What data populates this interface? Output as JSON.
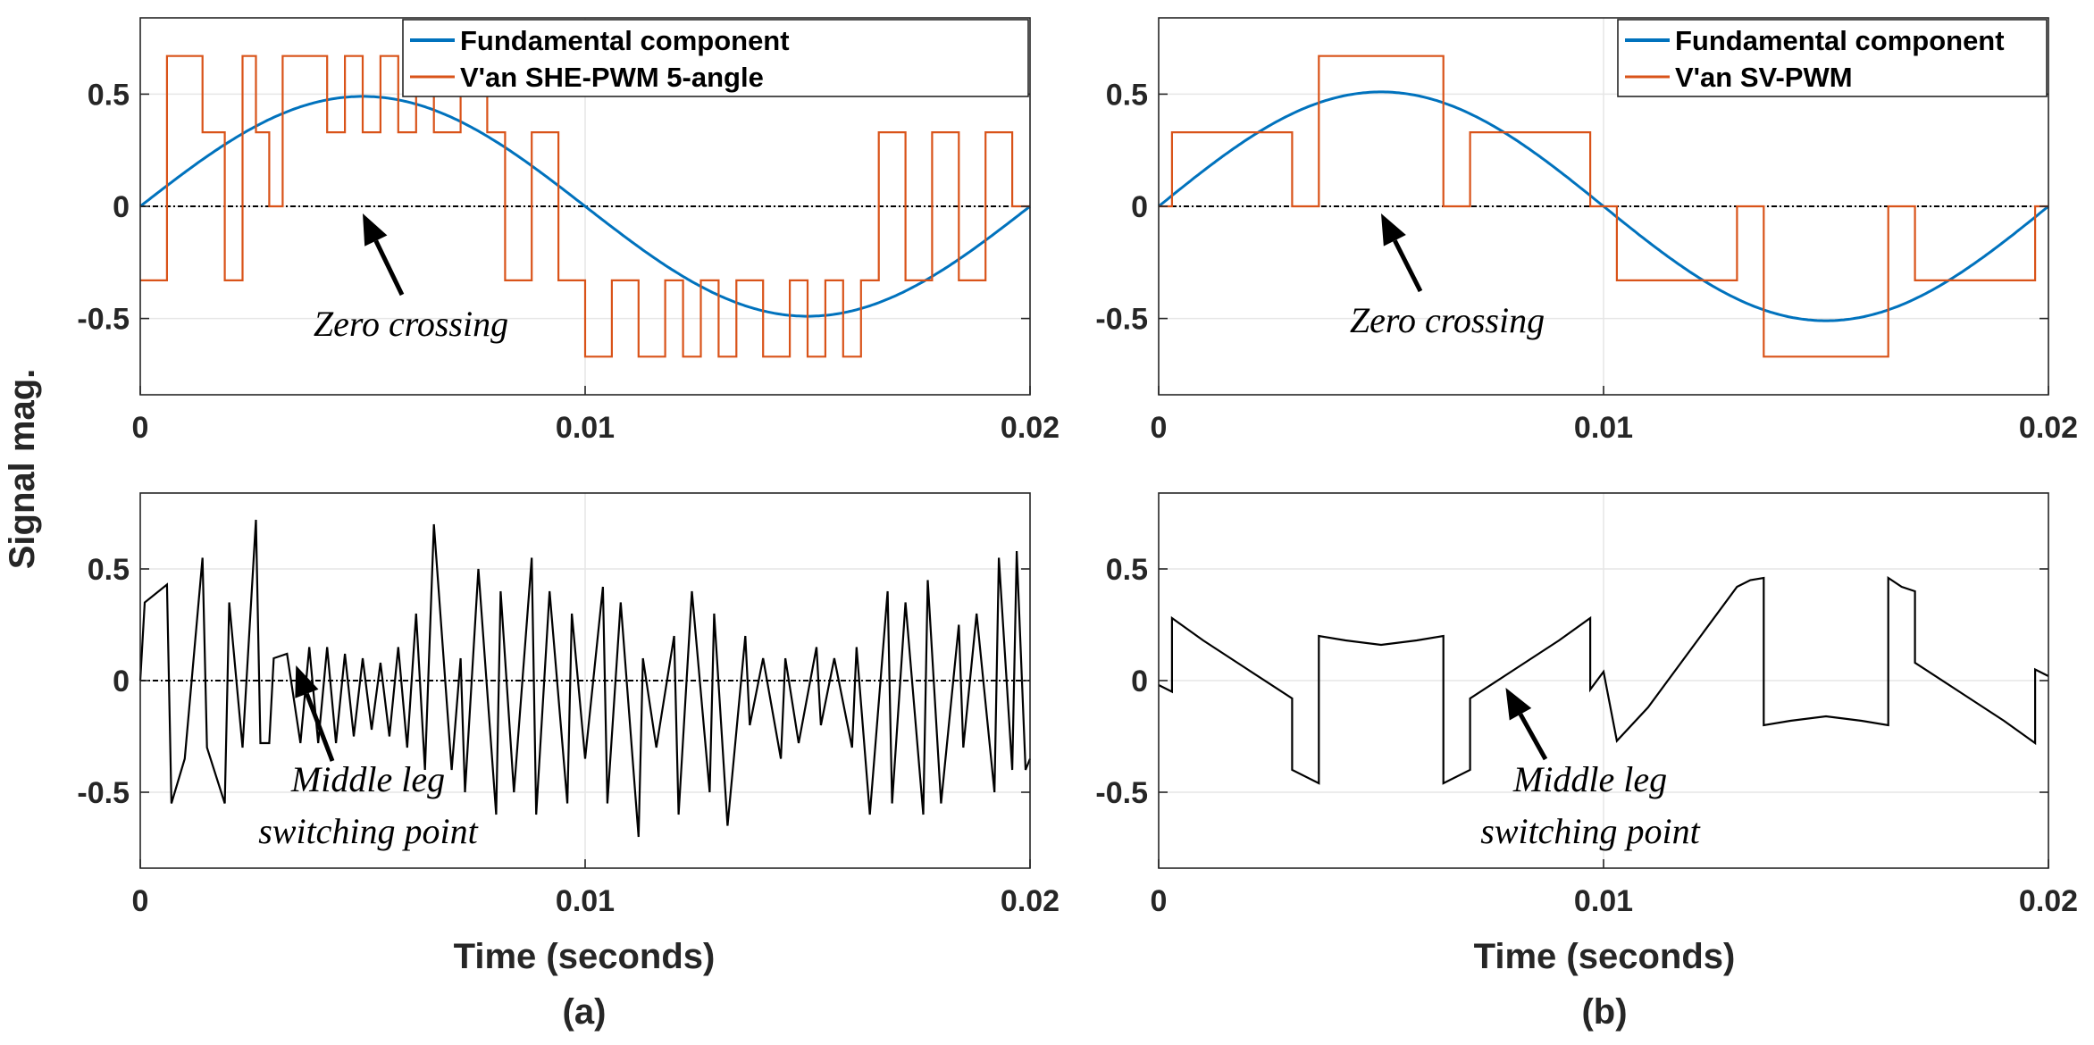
{
  "labels": {
    "ylabel": "Signal mag.",
    "xlabel_a": "Time (seconds)",
    "xlabel_b": "Time (seconds)",
    "caption_a": "(a)",
    "caption_b": "(b)"
  },
  "colors": {
    "fundamental": "#0072BD",
    "pwm": "#D95319",
    "middle": "#000000"
  },
  "chart_data": [
    {
      "id": "a_top",
      "type": "line",
      "xlim": [
        0,
        0.02
      ],
      "ylim": [
        -0.84,
        0.84
      ],
      "xticks": [
        0,
        0.01,
        0.02
      ],
      "xticklabels": [
        "0",
        "0.01",
        "0.02"
      ],
      "yticks": [
        -0.5,
        0,
        0.5
      ],
      "yticklabels": [
        "-0.5",
        "0",
        "0.5"
      ],
      "legend": [
        "Fundamental component",
        "V'an SHE-PWM 5-angle"
      ],
      "legend_position": "top-right",
      "zero_line": true,
      "annotations": [
        {
          "lines": [
            "Zero crossing"
          ],
          "arrow_to": [
            0.005,
            0.0
          ]
        }
      ],
      "series": [
        {
          "name": "Fundamental component",
          "kind": "sine",
          "amplitude": 0.49,
          "period": 0.02,
          "color": "fundamental"
        },
        {
          "name": "V'an SHE-PWM 5-angle",
          "kind": "step",
          "color": "pwm",
          "breaks": [
            0,
            0.0006,
            0.0014,
            0.0019,
            0.0023,
            0.0026,
            0.0029,
            0.0032,
            0.0042,
            0.0046,
            0.005,
            0.0054,
            0.0058,
            0.0062,
            0.0066,
            0.0072,
            0.0078,
            0.0082,
            0.0088,
            0.0094,
            0.01,
            0.0106,
            0.0112,
            0.0118,
            0.0122,
            0.0126,
            0.013,
            0.0134,
            0.014,
            0.0146,
            0.015,
            0.0154,
            0.0158,
            0.0162,
            0.0166,
            0.0172,
            0.0178,
            0.0184,
            0.019,
            0.0196,
            0.02
          ],
          "values": [
            -0.33,
            0.67,
            0.33,
            -0.33,
            0.67,
            0.33,
            0,
            0.67,
            0.33,
            0.67,
            0.33,
            0.67,
            0.33,
            0.67,
            0.33,
            0.67,
            0.33,
            -0.33,
            0.33,
            -0.33,
            -0.67,
            -0.33,
            -0.67,
            -0.33,
            -0.67,
            -0.33,
            -0.67,
            -0.33,
            -0.67,
            -0.33,
            -0.67,
            -0.33,
            -0.67,
            -0.33,
            0.33,
            -0.33,
            0.33,
            -0.33,
            0.33,
            0
          ]
        }
      ]
    },
    {
      "id": "b_top",
      "type": "line",
      "xlim": [
        0,
        0.02
      ],
      "ylim": [
        -0.84,
        0.84
      ],
      "xticks": [
        0,
        0.01,
        0.02
      ],
      "xticklabels": [
        "0",
        "0.01",
        "0.02"
      ],
      "yticks": [
        -0.5,
        0,
        0.5
      ],
      "yticklabels": [
        "-0.5",
        "0",
        "0.5"
      ],
      "legend": [
        "Fundamental component",
        "V'an SV-PWM"
      ],
      "legend_position": "top-right",
      "zero_line": true,
      "annotations": [
        {
          "lines": [
            "Zero crossing"
          ],
          "arrow_to": [
            0.005,
            0.0
          ]
        }
      ],
      "series": [
        {
          "name": "Fundamental component",
          "kind": "sine",
          "amplitude": 0.51,
          "period": 0.02,
          "color": "fundamental"
        },
        {
          "name": "V'an SV-PWM",
          "kind": "step",
          "color": "pwm",
          "breaks": [
            0,
            0.0003,
            0.003,
            0.0036,
            0.0064,
            0.007,
            0.0097,
            0.0103,
            0.013,
            0.0136,
            0.0164,
            0.017,
            0.0197,
            0.02
          ],
          "values": [
            0,
            0.33,
            0,
            0.67,
            0,
            0.33,
            0,
            -0.33,
            0,
            -0.67,
            0,
            -0.33,
            0
          ]
        }
      ]
    },
    {
      "id": "a_bottom",
      "type": "line",
      "xlim": [
        0,
        0.02
      ],
      "ylim": [
        -0.84,
        0.84
      ],
      "xticks": [
        0,
        0.01,
        0.02
      ],
      "xticklabels": [
        "0",
        "0.01",
        "0.02"
      ],
      "yticks": [
        -0.5,
        0,
        0.5
      ],
      "yticklabels": [
        "-0.5",
        "0",
        "0.5"
      ],
      "zero_line": true,
      "annotations": [
        {
          "lines": [
            "Middle leg",
            "switching point"
          ],
          "arrow_to": [
            0.0035,
            0.1
          ]
        }
      ],
      "series": [
        {
          "name": "",
          "kind": "polyline",
          "color": "middle",
          "x": [
            0,
            0.0001,
            0.0006,
            0.0007,
            0.001,
            0.0014,
            0.0015,
            0.0019,
            0.002,
            0.0023,
            0.0026,
            0.0027,
            0.0029,
            0.003,
            0.0033,
            0.0036,
            0.0038,
            0.004,
            0.0042,
            0.0044,
            0.0046,
            0.0048,
            0.005,
            0.0052,
            0.0054,
            0.0056,
            0.0058,
            0.006,
            0.0062,
            0.0064,
            0.0066,
            0.007,
            0.0072,
            0.0073,
            0.0076,
            0.008,
            0.0081,
            0.0084,
            0.0088,
            0.0089,
            0.0092,
            0.0096,
            0.0097,
            0.01,
            0.0104,
            0.0105,
            0.0108,
            0.0112,
            0.0113,
            0.0116,
            0.012,
            0.0121,
            0.0124,
            0.0128,
            0.0129,
            0.0132,
            0.0136,
            0.0137,
            0.014,
            0.0144,
            0.0145,
            0.0148,
            0.0152,
            0.0153,
            0.0156,
            0.016,
            0.0161,
            0.0164,
            0.0168,
            0.0169,
            0.0172,
            0.0176,
            0.0177,
            0.018,
            0.0184,
            0.0185,
            0.0188,
            0.0192,
            0.0193,
            0.0196,
            0.0197,
            0.0199,
            0.02
          ],
          "y": [
            0.0,
            0.35,
            0.43,
            -0.55,
            -0.35,
            0.55,
            -0.3,
            -0.55,
            0.35,
            -0.3,
            0.72,
            -0.28,
            -0.28,
            0.1,
            0.12,
            -0.28,
            0.15,
            -0.28,
            0.15,
            -0.28,
            0.12,
            -0.25,
            0.1,
            -0.22,
            0.08,
            -0.25,
            0.15,
            -0.3,
            0.3,
            -0.4,
            0.7,
            -0.4,
            0.1,
            -0.5,
            0.5,
            -0.6,
            0.4,
            -0.5,
            0.55,
            -0.6,
            0.4,
            -0.55,
            0.3,
            -0.35,
            0.42,
            -0.55,
            0.35,
            -0.7,
            0.1,
            -0.3,
            0.2,
            -0.6,
            0.4,
            -0.5,
            0.3,
            -0.65,
            0.2,
            -0.2,
            0.1,
            -0.35,
            0.1,
            -0.28,
            0.15,
            -0.2,
            0.1,
            -0.3,
            0.15,
            -0.6,
            0.4,
            -0.55,
            0.35,
            -0.6,
            0.45,
            -0.55,
            0.25,
            -0.3,
            0.3,
            -0.5,
            0.55,
            -0.4,
            0.58,
            -0.4,
            -0.35
          ]
        }
      ]
    },
    {
      "id": "b_bottom",
      "type": "line",
      "xlim": [
        0,
        0.02
      ],
      "ylim": [
        -0.84,
        0.84
      ],
      "xticks": [
        0,
        0.01,
        0.02
      ],
      "xticklabels": [
        "0",
        "0.01",
        "0.02"
      ],
      "yticks": [
        -0.5,
        0,
        0.5
      ],
      "yticklabels": [
        "-0.5",
        "0",
        "0.5"
      ],
      "zero_line": false,
      "annotations": [
        {
          "lines": [
            "Middle leg",
            "switching point"
          ],
          "arrow_to": [
            0.0078,
            0.0
          ]
        }
      ],
      "series": [
        {
          "name": "",
          "kind": "polyline",
          "color": "middle",
          "x": [
            0,
            0.0003,
            0.0003,
            0.001,
            0.002,
            0.003,
            0.003,
            0.0036,
            0.0036,
            0.0042,
            0.005,
            0.0058,
            0.0064,
            0.0064,
            0.007,
            0.007,
            0.008,
            0.009,
            0.0097,
            0.0097,
            0.01,
            0.01,
            0.0103,
            0.0103,
            0.011,
            0.012,
            0.013,
            0.013,
            0.0133,
            0.0133,
            0.0136,
            0.0136,
            0.0142,
            0.015,
            0.0158,
            0.0164,
            0.0164,
            0.0167,
            0.0167,
            0.017,
            0.017,
            0.018,
            0.019,
            0.0197,
            0.0197,
            0.02
          ],
          "y": [
            -0.02,
            -0.05,
            0.28,
            0.18,
            0.05,
            -0.08,
            -0.4,
            -0.46,
            0.2,
            0.18,
            0.16,
            0.18,
            0.2,
            -0.46,
            -0.4,
            -0.08,
            0.05,
            0.18,
            0.28,
            -0.04,
            0.04,
            0.04,
            -0.27,
            -0.27,
            -0.12,
            0.15,
            0.42,
            0.42,
            0.45,
            0.45,
            0.46,
            -0.2,
            -0.18,
            -0.16,
            -0.18,
            -0.2,
            0.46,
            0.42,
            0.42,
            0.4,
            0.08,
            -0.05,
            -0.18,
            -0.28,
            0.05,
            0.02
          ]
        }
      ]
    }
  ]
}
